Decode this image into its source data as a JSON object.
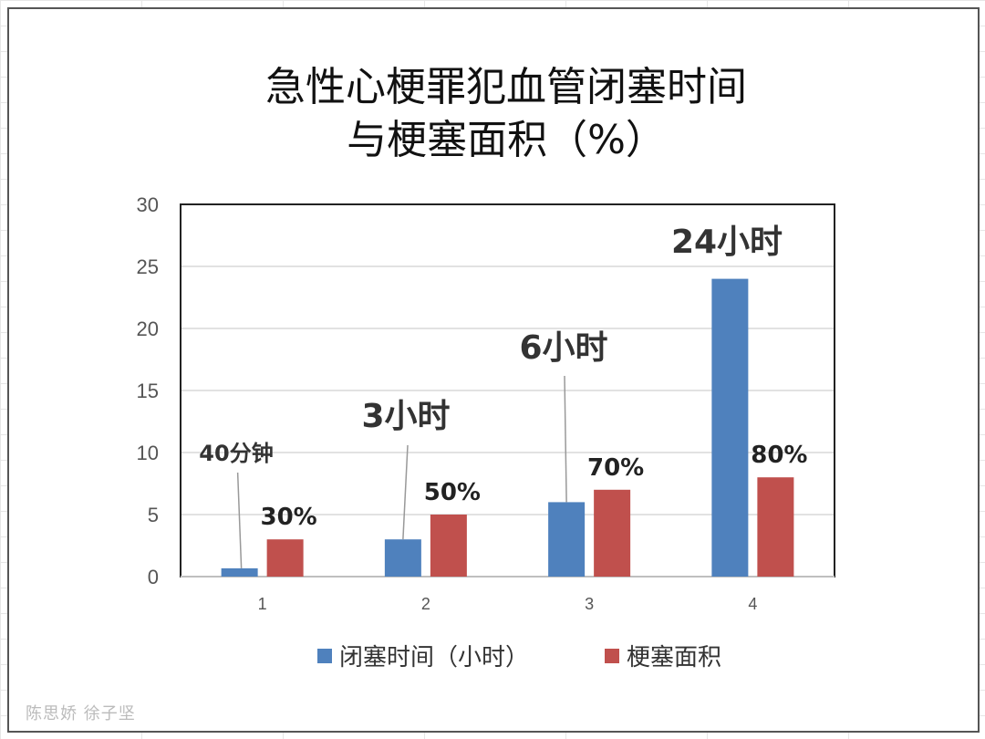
{
  "chart_data": {
    "type": "bar",
    "title_line1": "急性心梗罪犯血管闭塞时间",
    "title_line2": "与梗塞面积（%）",
    "categories": [
      "1",
      "2",
      "3",
      "4"
    ],
    "ylim": [
      0,
      30
    ],
    "yticks": [
      "0",
      "5",
      "10",
      "15",
      "20",
      "25",
      "30"
    ],
    "grid": true,
    "legend_position": "bottom",
    "series": [
      {
        "name": "闭塞时间（小时）",
        "color": "#4f81bd",
        "values": [
          0.67,
          3,
          6,
          24
        ]
      },
      {
        "name": "梗塞面积",
        "color": "#c0504d",
        "values": [
          3,
          5,
          7,
          8
        ]
      }
    ],
    "time_annotations": [
      "40分钟",
      "3小时",
      "6小时",
      "24小时"
    ],
    "percent_labels": [
      "30%",
      "50%",
      "70%",
      "80%"
    ]
  },
  "signature": "陈思娇 徐子坚"
}
